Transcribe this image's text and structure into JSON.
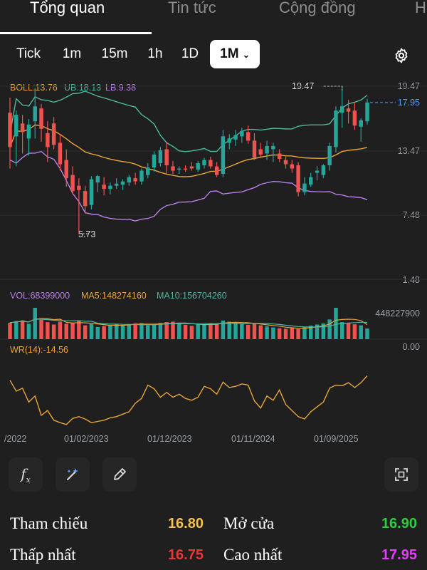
{
  "tabs": [
    {
      "label": "Tổng quan",
      "active": true
    },
    {
      "label": "Tin tức",
      "active": false
    },
    {
      "label": "Cộng đồng",
      "active": false
    },
    {
      "label": "H",
      "active": false
    }
  ],
  "periods": [
    "Tick",
    "1m",
    "15m",
    "1h",
    "1D",
    "1M"
  ],
  "selected_period": "1M",
  "icons": {
    "settings": "gear-icon",
    "formula": "function-icon",
    "ai": "sparkle-wand-icon",
    "draw": "pencil-icon",
    "fullscreen": "expand-icon"
  },
  "legend": {
    "boll": "BOLL:13.76",
    "ub": "UB:18.13",
    "lb": "LB:9.38",
    "vol": "VOL:68399000",
    "ma5": "MA5:148274160",
    "ma10": "MA10:156704260",
    "wr": "WR(14):-14.56"
  },
  "price_axis": [
    "19.47",
    "17.95",
    "13.47",
    "7.48",
    "1.48"
  ],
  "volume_axis": [
    "448227900",
    "0.00"
  ],
  "annotations": {
    "high": "19.47",
    "low": "5.73"
  },
  "colors": {
    "up": "#26a69a",
    "down": "#ef5350",
    "boll": "#e8a53a",
    "ub": "#4fb6a0",
    "lb": "#b97fe8",
    "wr": "#e8a53a",
    "last_price": "#4a9eff"
  },
  "stats": {
    "ref_label": "Tham chiếu",
    "ref_value": "16.80",
    "open_label": "Mở cửa",
    "open_value": "16.90",
    "low_label": "Thấp nhất",
    "low_value": "16.75",
    "high_label": "Cao nhất",
    "high_value": "17.95"
  },
  "chart_data": {
    "type": "candlestick",
    "x_ticks": [
      "/2022",
      "01/02/2023",
      "01/12/2023",
      "01/11/2024",
      "01/09/2025"
    ],
    "ylim": [
      1.48,
      19.47
    ],
    "candles": [
      {
        "o": 17.0,
        "h": 18.4,
        "l": 11.8,
        "c": 13.8
      },
      {
        "o": 14.8,
        "h": 17.2,
        "l": 12.0,
        "c": 16.8
      },
      {
        "o": 16.0,
        "h": 16.8,
        "l": 13.2,
        "c": 15.2
      },
      {
        "o": 14.6,
        "h": 16.4,
        "l": 13.0,
        "c": 15.9
      },
      {
        "o": 16.2,
        "h": 19.3,
        "l": 14.6,
        "c": 17.6
      },
      {
        "o": 17.4,
        "h": 17.8,
        "l": 14.3,
        "c": 15.5
      },
      {
        "o": 15.1,
        "h": 16.2,
        "l": 12.4,
        "c": 13.8
      },
      {
        "o": 16.0,
        "h": 16.6,
        "l": 13.6,
        "c": 14.0
      },
      {
        "o": 14.2,
        "h": 14.9,
        "l": 11.6,
        "c": 12.2
      },
      {
        "o": 12.6,
        "h": 13.6,
        "l": 10.1,
        "c": 10.9
      },
      {
        "o": 11.2,
        "h": 12.0,
        "l": 9.4,
        "c": 9.7
      },
      {
        "o": 10.2,
        "h": 10.9,
        "l": 5.73,
        "c": 9.8
      },
      {
        "o": 9.7,
        "h": 10.2,
        "l": 7.6,
        "c": 8.3
      },
      {
        "o": 8.4,
        "h": 11.1,
        "l": 8.0,
        "c": 10.8
      },
      {
        "o": 10.5,
        "h": 11.2,
        "l": 9.6,
        "c": 11.1
      },
      {
        "o": 10.3,
        "h": 11.0,
        "l": 9.3,
        "c": 9.9
      },
      {
        "o": 9.9,
        "h": 10.5,
        "l": 9.4,
        "c": 10.2
      },
      {
        "o": 10.2,
        "h": 10.9,
        "l": 9.9,
        "c": 10.4
      },
      {
        "o": 10.3,
        "h": 10.8,
        "l": 9.8,
        "c": 10.6
      },
      {
        "o": 10.5,
        "h": 11.2,
        "l": 10.2,
        "c": 11.0
      },
      {
        "o": 10.9,
        "h": 11.4,
        "l": 10.3,
        "c": 10.6
      },
      {
        "o": 10.6,
        "h": 11.8,
        "l": 10.3,
        "c": 11.6
      },
      {
        "o": 11.2,
        "h": 12.3,
        "l": 10.9,
        "c": 11.9
      },
      {
        "o": 11.9,
        "h": 13.4,
        "l": 11.5,
        "c": 13.1
      },
      {
        "o": 12.3,
        "h": 13.8,
        "l": 12.0,
        "c": 13.5
      },
      {
        "o": 13.6,
        "h": 14.3,
        "l": 11.3,
        "c": 12.1
      },
      {
        "o": 12.0,
        "h": 12.5,
        "l": 11.3,
        "c": 11.6
      },
      {
        "o": 11.7,
        "h": 12.0,
        "l": 11.3,
        "c": 11.8
      },
      {
        "o": 11.8,
        "h": 12.1,
        "l": 11.5,
        "c": 11.7
      },
      {
        "o": 12.0,
        "h": 12.4,
        "l": 11.6,
        "c": 11.8
      },
      {
        "o": 11.7,
        "h": 12.5,
        "l": 11.5,
        "c": 12.3
      },
      {
        "o": 12.1,
        "h": 12.8,
        "l": 11.8,
        "c": 12.6
      },
      {
        "o": 12.6,
        "h": 12.9,
        "l": 11.8,
        "c": 12.0
      },
      {
        "o": 12.0,
        "h": 12.4,
        "l": 11.0,
        "c": 11.2
      },
      {
        "o": 11.3,
        "h": 15.4,
        "l": 11.0,
        "c": 14.8
      },
      {
        "o": 14.2,
        "h": 15.0,
        "l": 13.6,
        "c": 14.6
      },
      {
        "o": 14.5,
        "h": 15.4,
        "l": 13.9,
        "c": 14.9
      },
      {
        "o": 14.8,
        "h": 15.6,
        "l": 14.2,
        "c": 15.3
      },
      {
        "o": 15.2,
        "h": 15.8,
        "l": 14.1,
        "c": 14.4
      },
      {
        "o": 14.4,
        "h": 15.1,
        "l": 12.6,
        "c": 12.8
      },
      {
        "o": 13.6,
        "h": 14.2,
        "l": 12.9,
        "c": 13.1
      },
      {
        "o": 13.2,
        "h": 14.4,
        "l": 12.6,
        "c": 13.9
      },
      {
        "o": 13.6,
        "h": 14.2,
        "l": 12.4,
        "c": 13.9
      },
      {
        "o": 13.2,
        "h": 13.6,
        "l": 12.4,
        "c": 12.7
      },
      {
        "o": 12.6,
        "h": 13.0,
        "l": 11.8,
        "c": 12.2
      },
      {
        "o": 12.2,
        "h": 12.6,
        "l": 11.4,
        "c": 11.8
      },
      {
        "o": 12.1,
        "h": 12.4,
        "l": 9.2,
        "c": 9.6
      },
      {
        "o": 9.6,
        "h": 11.0,
        "l": 9.3,
        "c": 10.4
      },
      {
        "o": 10.3,
        "h": 11.4,
        "l": 10.1,
        "c": 11.0
      },
      {
        "o": 11.4,
        "h": 12.0,
        "l": 10.7,
        "c": 11.6
      },
      {
        "o": 11.2,
        "h": 12.2,
        "l": 10.9,
        "c": 12.1
      },
      {
        "o": 12.1,
        "h": 14.2,
        "l": 11.6,
        "c": 13.9
      },
      {
        "o": 13.8,
        "h": 17.6,
        "l": 13.3,
        "c": 17.2
      },
      {
        "o": 17.0,
        "h": 19.47,
        "l": 15.6,
        "c": 17.6
      },
      {
        "o": 17.4,
        "h": 18.2,
        "l": 16.0,
        "c": 17.1
      },
      {
        "o": 17.2,
        "h": 17.9,
        "l": 15.4,
        "c": 15.8
      },
      {
        "o": 15.7,
        "h": 16.5,
        "l": 14.3,
        "c": 16.3
      },
      {
        "o": 16.2,
        "h": 18.3,
        "l": 15.9,
        "c": 17.95
      }
    ],
    "volume": [
      62,
      68,
      71,
      58,
      118,
      73,
      64,
      55,
      66,
      58,
      61,
      70,
      52,
      57,
      46,
      49,
      53,
      57,
      54,
      56,
      59,
      60,
      52,
      55,
      61,
      64,
      66,
      58,
      54,
      50,
      55,
      57,
      60,
      58,
      70,
      66,
      62,
      57,
      54,
      59,
      52,
      48,
      44,
      41,
      39,
      42,
      38,
      46,
      51,
      55,
      59,
      74,
      118,
      64,
      60,
      56,
      52,
      40
    ],
    "wr": [
      -22,
      -40,
      -35,
      -58,
      -48,
      -80,
      -72,
      -88,
      -92,
      -95,
      -85,
      -82,
      -86,
      -92,
      -90,
      -88,
      -84,
      -82,
      -78,
      -74,
      -60,
      -52,
      -30,
      -36,
      -50,
      -42,
      -50,
      -45,
      -52,
      -55,
      -50,
      -32,
      -36,
      -45,
      -25,
      -34,
      -32,
      -28,
      -30,
      -56,
      -68,
      -48,
      -55,
      -38,
      -62,
      -72,
      -82,
      -86,
      -74,
      -66,
      -58,
      -35,
      -30,
      -31,
      -26,
      -34,
      -26,
      -14.56
    ]
  }
}
